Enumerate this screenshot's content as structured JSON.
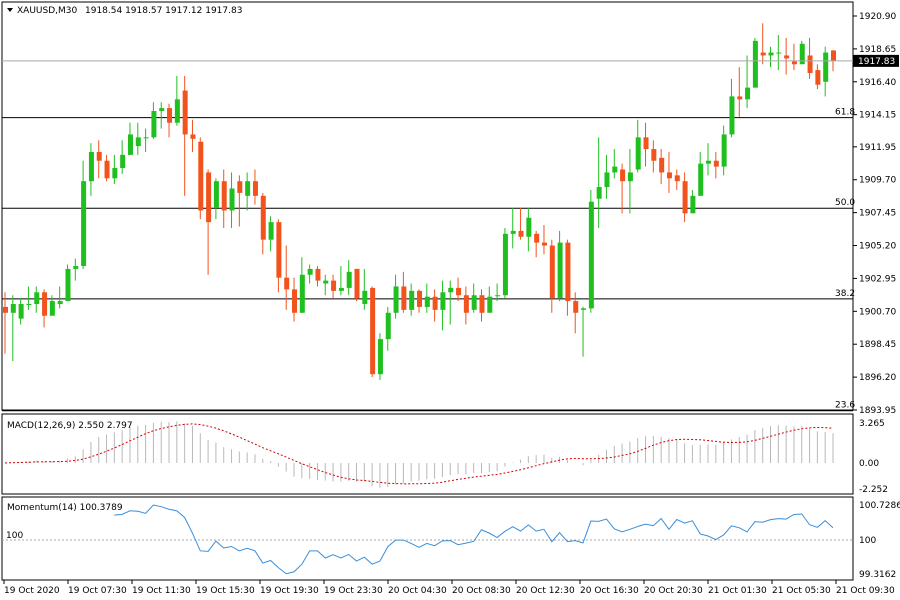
{
  "main": {
    "symbol": "XAUUSD,M30",
    "ohlc_text": "1918.54 1918.57 1917.12 1917.83",
    "current_price_label": "1917.83",
    "y_ticks": [
      "1920.90",
      "1918.65",
      "1916.40",
      "1914.15",
      "1911.95",
      "1909.70",
      "1907.45",
      "1905.20",
      "1902.95",
      "1900.70",
      "1898.45",
      "1896.20",
      "1893.95"
    ],
    "fib_labels": [
      "61.8",
      "50.0",
      "38.2",
      "23.6"
    ],
    "colors": {
      "bull": "#1fbf1f",
      "bear": "#f2531d",
      "grid": "#000000"
    }
  },
  "macd": {
    "title": "MACD(12,26,9) 2.550 2.797",
    "ticks": [
      "3.265",
      "0.00",
      "-2.252"
    ],
    "signal_color": "#d40000",
    "hist_color": "#b8b8b8"
  },
  "momentum": {
    "title": "Momentum(14) 100.3789",
    "ticks": [
      "100.7286",
      "100",
      "99.3162"
    ],
    "left_label": "100",
    "line_color": "#3a8fd8"
  },
  "time_axis": [
    "19 Oct 2020",
    "19 Oct 07:30",
    "19 Oct 11:30",
    "19 Oct 15:30",
    "19 Oct 19:30",
    "19 Oct 23:30",
    "20 Oct 04:30",
    "20 Oct 08:30",
    "20 Oct 12:30",
    "20 Oct 16:30",
    "20 Oct 20:30",
    "21 Oct 01:30",
    "21 Oct 05:30",
    "21 Oct 09:30"
  ],
  "chart_data": [
    {
      "type": "candlestick",
      "title": "XAUUSD,M30",
      "ylim": [
        1893.95,
        1921.4
      ],
      "fib_levels": [
        {
          "label": "61.8",
          "price": 1913.95
        },
        {
          "label": "50.0",
          "price": 1907.75
        },
        {
          "label": "38.2",
          "price": 1901.55
        },
        {
          "label": "23.6",
          "price": 1893.9
        }
      ],
      "current_price": 1917.83,
      "candles": [
        [
          1901.0,
          1900.6,
          1902.0,
          1897.8
        ],
        [
          1900.6,
          1901.2,
          1901.8,
          1897.3
        ],
        [
          1900.2,
          1901.2,
          1901.6,
          1899.8
        ],
        [
          1901.2,
          1901.2,
          1902.4,
          1900.8
        ],
        [
          1901.2,
          1902.0,
          1902.4,
          1900.6
        ],
        [
          1902.0,
          1900.4,
          1902.2,
          1899.6
        ],
        [
          1900.4,
          1901.4,
          1901.8,
          1900.4
        ],
        [
          1901.2,
          1901.4,
          1902.4,
          1900.9
        ],
        [
          1901.4,
          1903.6,
          1903.9,
          1901.6
        ],
        [
          1903.6,
          1903.8,
          1904.3,
          1902.8
        ],
        [
          1903.8,
          1909.6,
          1911.0,
          1903.6
        ],
        [
          1909.6,
          1911.6,
          1912.2,
          1908.6
        ],
        [
          1911.6,
          1911.0,
          1912.4,
          1909.8
        ],
        [
          1911.0,
          1909.8,
          1911.4,
          1909.6
        ],
        [
          1909.8,
          1910.5,
          1911.4,
          1909.4
        ],
        [
          1910.5,
          1911.4,
          1912.4,
          1910.1
        ],
        [
          1911.4,
          1912.8,
          1913.6,
          1911.4
        ],
        [
          1912.0,
          1912.6,
          1913.6,
          1911.4
        ],
        [
          1912.6,
          1912.6,
          1913.2,
          1911.6
        ],
        [
          1912.6,
          1914.4,
          1915.0,
          1912.5
        ],
        [
          1914.4,
          1914.6,
          1915.0,
          1913.2
        ],
        [
          1914.6,
          1913.6,
          1914.9,
          1912.6
        ],
        [
          1913.6,
          1915.2,
          1916.8,
          1913.4
        ],
        [
          1915.8,
          1912.8,
          1916.8,
          1908.6
        ],
        [
          1912.8,
          1912.5,
          1913.8,
          1911.6
        ],
        [
          1912.3,
          1907.6,
          1912.6,
          1907.0
        ],
        [
          1910.2,
          1906.8,
          1910.4,
          1903.2
        ],
        [
          1907.8,
          1909.6,
          1909.8,
          1907.0
        ],
        [
          1909.6,
          1907.6,
          1910.4,
          1906.4
        ],
        [
          1907.6,
          1909.1,
          1910.2,
          1906.4
        ],
        [
          1909.6,
          1908.8,
          1910.0,
          1906.5
        ],
        [
          1908.6,
          1909.6,
          1910.2,
          1907.6
        ],
        [
          1909.6,
          1908.6,
          1910.4,
          1908.0
        ],
        [
          1908.6,
          1905.6,
          1908.8,
          1904.6
        ],
        [
          1905.6,
          1906.8,
          1907.2,
          1904.8
        ],
        [
          1906.8,
          1903.0,
          1907.0,
          1902.0
        ],
        [
          1903.0,
          1902.2,
          1905.2,
          1900.8
        ],
        [
          1902.2,
          1900.6,
          1903.0,
          1900.0
        ],
        [
          1900.6,
          1903.2,
          1904.4,
          1900.6
        ],
        [
          1903.2,
          1903.6,
          1903.9,
          1902.6
        ],
        [
          1903.6,
          1902.8,
          1903.8,
          1902.4
        ],
        [
          1902.6,
          1902.8,
          1903.2,
          1901.8
        ],
        [
          1902.8,
          1902.1,
          1903.2,
          1901.6
        ],
        [
          1902.1,
          1902.3,
          1903.8,
          1901.8
        ],
        [
          1902.3,
          1903.4,
          1904.2,
          1901.8
        ],
        [
          1903.6,
          1901.6,
          1903.6,
          1901.4
        ],
        [
          1901.2,
          1902.1,
          1903.6,
          1900.8
        ],
        [
          1902.3,
          1896.4,
          1902.4,
          1896.2
        ],
        [
          1896.4,
          1898.8,
          1899.2,
          1896.0
        ],
        [
          1898.8,
          1900.6,
          1901.0,
          1898.0
        ],
        [
          1900.6,
          1902.4,
          1903.2,
          1900.2
        ],
        [
          1902.4,
          1900.8,
          1903.4,
          1900.6
        ],
        [
          1900.8,
          1902.1,
          1902.6,
          1900.4
        ],
        [
          1902.1,
          1901.0,
          1902.2,
          1900.6
        ],
        [
          1901.0,
          1901.7,
          1902.6,
          1900.6
        ],
        [
          1901.7,
          1900.8,
          1902.2,
          1900.0
        ],
        [
          1900.8,
          1902.0,
          1902.8,
          1899.4
        ],
        [
          1902.0,
          1902.3,
          1902.8,
          1899.8
        ],
        [
          1902.3,
          1901.8,
          1903.0,
          1901.4
        ],
        [
          1901.8,
          1900.6,
          1902.4,
          1899.8
        ],
        [
          1900.8,
          1901.8,
          1902.6,
          1900.6
        ],
        [
          1901.8,
          1900.6,
          1902.2,
          1900.0
        ],
        [
          1900.6,
          1901.7,
          1902.4,
          1900.8
        ],
        [
          1901.8,
          1901.8,
          1902.6,
          1901.4
        ],
        [
          1901.8,
          1906.0,
          1906.4,
          1901.6
        ],
        [
          1906.0,
          1906.2,
          1907.8,
          1905.0
        ],
        [
          1906.2,
          1905.8,
          1907.8,
          1905.6
        ],
        [
          1905.8,
          1907.1,
          1907.8,
          1904.8
        ],
        [
          1906.0,
          1905.4,
          1906.2,
          1904.4
        ],
        [
          1905.4,
          1905.2,
          1906.6,
          1904.6
        ],
        [
          1905.2,
          1901.6,
          1905.6,
          1900.6
        ],
        [
          1901.6,
          1905.4,
          1906.2,
          1901.4
        ],
        [
          1905.4,
          1901.4,
          1905.6,
          1900.4
        ],
        [
          1901.4,
          1900.6,
          1902.0,
          1899.2
        ],
        [
          1900.8,
          1900.9,
          1901.0,
          1897.6
        ],
        [
          1900.9,
          1908.2,
          1909.0,
          1900.6
        ],
        [
          1908.4,
          1909.2,
          1912.6,
          1906.4
        ],
        [
          1909.2,
          1910.2,
          1911.4,
          1908.4
        ],
        [
          1910.2,
          1910.6,
          1911.8,
          1909.8
        ],
        [
          1910.4,
          1909.6,
          1910.8,
          1907.4
        ],
        [
          1909.6,
          1910.2,
          1911.8,
          1907.4
        ],
        [
          1910.4,
          1912.6,
          1913.8,
          1910.2
        ],
        [
          1912.6,
          1911.8,
          1913.6,
          1910.6
        ],
        [
          1911.8,
          1911.0,
          1912.4,
          1910.2
        ],
        [
          1911.2,
          1910.2,
          1911.8,
          1909.4
        ],
        [
          1910.2,
          1909.8,
          1911.6,
          1908.8
        ],
        [
          1910.0,
          1909.6,
          1910.4,
          1909.0
        ],
        [
          1909.6,
          1907.4,
          1910.2,
          1906.8
        ],
        [
          1907.4,
          1908.6,
          1909.0,
          1907.6
        ],
        [
          1908.6,
          1910.8,
          1911.6,
          1908.6
        ],
        [
          1910.8,
          1911.0,
          1912.2,
          1910.0
        ],
        [
          1911.0,
          1910.6,
          1911.6,
          1909.8
        ],
        [
          1910.6,
          1912.8,
          1913.4,
          1910.0
        ],
        [
          1912.8,
          1915.4,
          1916.6,
          1912.6
        ],
        [
          1915.4,
          1915.2,
          1917.4,
          1914.0
        ],
        [
          1915.2,
          1916.0,
          1918.2,
          1914.6
        ],
        [
          1916.0,
          1919.2,
          1919.4,
          1916.0
        ],
        [
          1918.4,
          1918.2,
          1920.4,
          1917.6
        ],
        [
          1918.2,
          1918.4,
          1918.8,
          1917.4
        ],
        [
          1918.4,
          1918.4,
          1919.6,
          1917.2
        ],
        [
          1918.2,
          1918.0,
          1919.4,
          1916.9
        ],
        [
          1917.8,
          1917.6,
          1919.0,
          1917.2
        ],
        [
          1917.6,
          1919.0,
          1919.2,
          1917.8
        ],
        [
          1918.2,
          1917.0,
          1919.4,
          1916.6
        ],
        [
          1917.2,
          1916.2,
          1917.6,
          1915.9
        ],
        [
          1916.4,
          1918.4,
          1918.8,
          1915.4
        ],
        [
          1918.54,
          1917.83,
          1918.57,
          1917.12
        ]
      ]
    },
    {
      "type": "macd",
      "title": "MACD(12,26,9)",
      "ylim": [
        -2.252,
        3.265
      ]
    },
    {
      "type": "line",
      "title": "Momentum(14)",
      "ylim": [
        99.3162,
        100.7286
      ],
      "reference_level": 100
    }
  ]
}
